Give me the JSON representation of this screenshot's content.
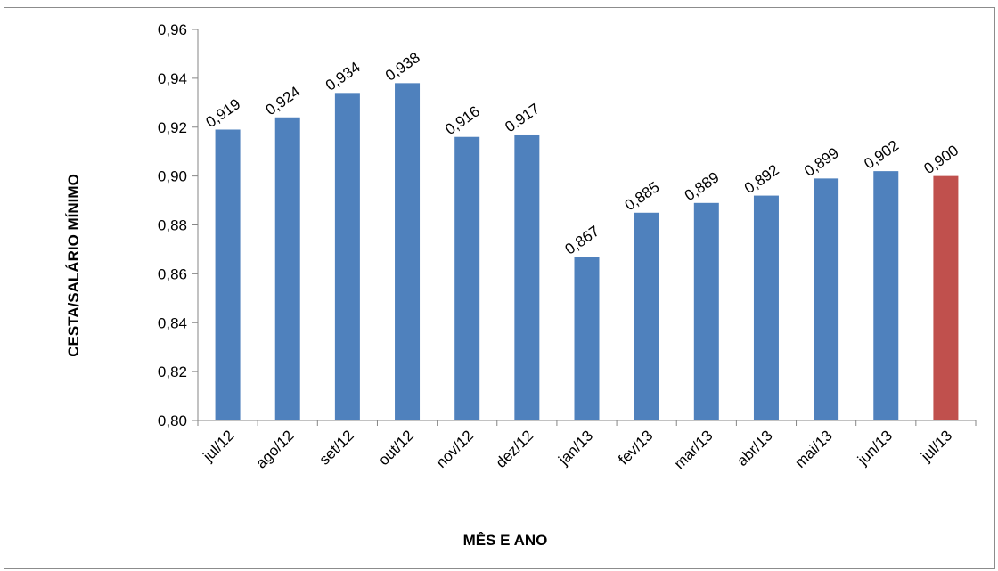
{
  "chart_data": {
    "type": "bar",
    "categories": [
      "jul/12",
      "ago/12",
      "set/12",
      "out/12",
      "nov/12",
      "dez/12",
      "jan/13",
      "fev/13",
      "mar/13",
      "abr/13",
      "mai/13",
      "jun/13",
      "jul/13"
    ],
    "values": [
      0.919,
      0.924,
      0.934,
      0.938,
      0.916,
      0.917,
      0.867,
      0.885,
      0.889,
      0.892,
      0.899,
      0.902,
      0.9
    ],
    "data_labels": [
      "0,919",
      "0,924",
      "0,934",
      "0,938",
      "0,916",
      "0,917",
      "0,867",
      "0,885",
      "0,889",
      "0,892",
      "0,899",
      "0,902",
      "0,900"
    ],
    "y_ticks": [
      0.8,
      0.82,
      0.84,
      0.86,
      0.88,
      0.9,
      0.92,
      0.94,
      0.96
    ],
    "y_tick_labels": [
      "0,80",
      "0,82",
      "0,84",
      "0,86",
      "0,88",
      "0,90",
      "0,92",
      "0,94",
      "0,96"
    ],
    "ylim": [
      0.8,
      0.96
    ],
    "xlabel": "MÊS E ANO",
    "ylabel": "CESTA/SALÁRIO MÍNIMO",
    "grid": false,
    "legend": "none",
    "bar_color": "#4f81bd",
    "highlight_color": "#c0504d",
    "highlight_category": "jul/13"
  }
}
